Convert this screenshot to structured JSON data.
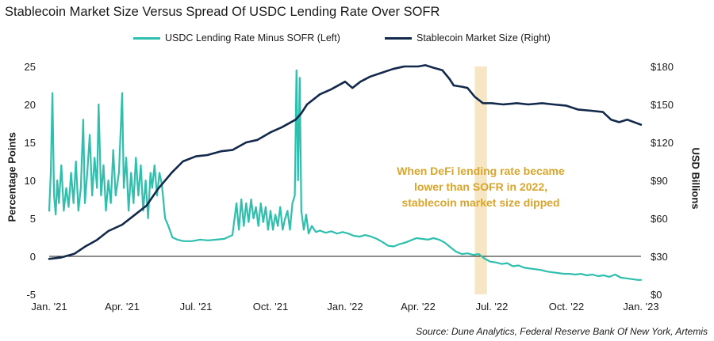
{
  "title": "Stablecoin Market Size Versus Spread Of USDC Lending Rate Over SOFR",
  "source": "Source: Dune Analytics, Federal Reserve Bank Of New York, Artemis",
  "colors": {
    "spread": "#2fbfae",
    "market": "#13294b",
    "highlight": "#f6e6c3",
    "annotation": "#d9a52b",
    "axis": "#1a1a1a",
    "text": "#1a1a1a"
  },
  "annotation": {
    "lines": [
      "When DeFi lending rate became",
      "lower than SOFR in 2022,",
      "stablecoin market size dipped"
    ]
  },
  "chart_data": {
    "type": "line",
    "title": "Stablecoin Market Size Versus Spread Of USDC Lending Rate Over SOFR",
    "x_type": "date",
    "x_range": [
      "2021-01-01",
      "2023-01-01"
    ],
    "x_ticks": [
      {
        "date": "2021-01-01",
        "label": "Jan. '21"
      },
      {
        "date": "2021-04-01",
        "label": "Apr. '21"
      },
      {
        "date": "2021-07-01",
        "label": "Jul. '21"
      },
      {
        "date": "2021-10-01",
        "label": "Oct. '21"
      },
      {
        "date": "2022-01-01",
        "label": "Jan. '22"
      },
      {
        "date": "2022-04-01",
        "label": "Apr. '22"
      },
      {
        "date": "2022-07-01",
        "label": "Jul. '22"
      },
      {
        "date": "2022-10-01",
        "label": "Oct. '22"
      },
      {
        "date": "2023-01-01",
        "label": "Jan. '23"
      }
    ],
    "y_left": {
      "label": "Percentage Points",
      "range": [
        -5,
        25
      ],
      "ticks": [
        -5,
        0,
        5,
        10,
        15,
        20,
        25
      ],
      "tick_labels": [
        "-5",
        "0",
        "5",
        "10",
        "15",
        "20",
        "25"
      ]
    },
    "y_right": {
      "label": "USD Billions",
      "range": [
        0,
        180
      ],
      "ticks": [
        0,
        30,
        60,
        90,
        120,
        150,
        180
      ],
      "tick_labels": [
        "$0",
        "$30",
        "$60",
        "$90",
        "$120",
        "$150",
        "$180"
      ]
    },
    "highlight_period": [
      "2022-06-10",
      "2022-06-25"
    ],
    "grid": false,
    "legend": "top",
    "series": [
      {
        "name": "USDC Lending Rate Minus SOFR (Left)",
        "axis": "left",
        "points": [
          [
            "2021-01-01",
            6
          ],
          [
            "2021-01-03",
            11
          ],
          [
            "2021-01-05",
            21.5
          ],
          [
            "2021-01-07",
            8
          ],
          [
            "2021-01-09",
            5.5
          ],
          [
            "2021-01-11",
            10
          ],
          [
            "2021-01-13",
            7
          ],
          [
            "2021-01-16",
            12
          ],
          [
            "2021-01-19",
            6
          ],
          [
            "2021-01-22",
            9
          ],
          [
            "2021-01-25",
            6.5
          ],
          [
            "2021-01-28",
            11
          ],
          [
            "2021-01-31",
            7
          ],
          [
            "2021-02-03",
            12.5
          ],
          [
            "2021-02-06",
            6
          ],
          [
            "2021-02-09",
            9
          ],
          [
            "2021-02-12",
            18
          ],
          [
            "2021-02-14",
            7
          ],
          [
            "2021-02-17",
            11
          ],
          [
            "2021-02-20",
            16
          ],
          [
            "2021-02-23",
            8
          ],
          [
            "2021-02-26",
            13
          ],
          [
            "2021-03-01",
            9
          ],
          [
            "2021-03-03",
            20
          ],
          [
            "2021-03-06",
            8
          ],
          [
            "2021-03-09",
            12
          ],
          [
            "2021-03-12",
            6
          ],
          [
            "2021-03-15",
            10
          ],
          [
            "2021-03-18",
            7
          ],
          [
            "2021-03-21",
            14
          ],
          [
            "2021-03-24",
            8
          ],
          [
            "2021-03-28",
            11
          ],
          [
            "2021-04-01",
            21.5
          ],
          [
            "2021-04-03",
            9
          ],
          [
            "2021-04-06",
            13
          ],
          [
            "2021-04-09",
            6
          ],
          [
            "2021-04-12",
            11
          ],
          [
            "2021-04-15",
            7
          ],
          [
            "2021-04-18",
            13
          ],
          [
            "2021-04-21",
            8
          ],
          [
            "2021-04-24",
            12
          ],
          [
            "2021-04-27",
            6
          ],
          [
            "2021-04-30",
            10
          ],
          [
            "2021-05-03",
            5
          ],
          [
            "2021-05-06",
            11
          ],
          [
            "2021-05-08",
            9
          ],
          [
            "2021-05-11",
            12
          ],
          [
            "2021-05-14",
            8
          ],
          [
            "2021-05-17",
            11
          ],
          [
            "2021-05-20",
            9.5
          ],
          [
            "2021-05-24",
            5
          ],
          [
            "2021-05-28",
            4
          ],
          [
            "2021-06-02",
            2.5
          ],
          [
            "2021-06-08",
            2.2
          ],
          [
            "2021-06-16",
            2.0
          ],
          [
            "2021-06-26",
            2.0
          ],
          [
            "2021-07-06",
            2.2
          ],
          [
            "2021-07-16",
            2.1
          ],
          [
            "2021-07-26",
            2.2
          ],
          [
            "2021-08-05",
            2.3
          ],
          [
            "2021-08-15",
            2.8
          ],
          [
            "2021-08-20",
            7
          ],
          [
            "2021-08-23",
            3.5
          ],
          [
            "2021-08-26",
            7.5
          ],
          [
            "2021-08-29",
            4
          ],
          [
            "2021-09-01",
            7
          ],
          [
            "2021-09-04",
            4.5
          ],
          [
            "2021-09-07",
            7.5
          ],
          [
            "2021-09-10",
            5
          ],
          [
            "2021-09-13",
            6.5
          ],
          [
            "2021-09-16",
            4
          ],
          [
            "2021-09-19",
            7
          ],
          [
            "2021-09-22",
            4.5
          ],
          [
            "2021-09-25",
            6.5
          ],
          [
            "2021-09-28",
            3.5
          ],
          [
            "2021-10-01",
            6
          ],
          [
            "2021-10-04",
            3.5
          ],
          [
            "2021-10-07",
            5.5
          ],
          [
            "2021-10-10",
            4
          ],
          [
            "2021-10-13",
            6.5
          ],
          [
            "2021-10-16",
            3.5
          ],
          [
            "2021-10-19",
            5
          ],
          [
            "2021-10-22",
            6
          ],
          [
            "2021-10-25",
            3.5
          ],
          [
            "2021-10-28",
            7
          ],
          [
            "2021-10-31",
            8
          ],
          [
            "2021-11-02",
            24.5
          ],
          [
            "2021-11-04",
            10
          ],
          [
            "2021-11-06",
            23.5
          ],
          [
            "2021-11-08",
            6
          ],
          [
            "2021-11-11",
            3.5
          ],
          [
            "2021-11-14",
            5.5
          ],
          [
            "2021-11-17",
            3
          ],
          [
            "2021-11-21",
            4
          ],
          [
            "2021-11-26",
            3.2
          ],
          [
            "2021-12-01",
            3.4
          ],
          [
            "2021-12-08",
            3.1
          ],
          [
            "2021-12-15",
            3.3
          ],
          [
            "2021-12-22",
            3.0
          ],
          [
            "2021-12-29",
            3.2
          ],
          [
            "2022-01-05",
            3.0
          ],
          [
            "2022-01-12",
            2.7
          ],
          [
            "2022-01-19",
            2.6
          ],
          [
            "2022-01-26",
            2.8
          ],
          [
            "2022-02-02",
            2.6
          ],
          [
            "2022-02-09",
            2.3
          ],
          [
            "2022-02-16",
            1.9
          ],
          [
            "2022-02-23",
            1.4
          ],
          [
            "2022-03-02",
            1.3
          ],
          [
            "2022-03-09",
            1.6
          ],
          [
            "2022-03-16",
            1.8
          ],
          [
            "2022-03-23",
            2.1
          ],
          [
            "2022-03-30",
            2.4
          ],
          [
            "2022-04-06",
            2.3
          ],
          [
            "2022-04-13",
            2.2
          ],
          [
            "2022-04-20",
            2.4
          ],
          [
            "2022-04-27",
            2.2
          ],
          [
            "2022-05-04",
            1.8
          ],
          [
            "2022-05-11",
            1.2
          ],
          [
            "2022-05-18",
            0.6
          ],
          [
            "2022-05-25",
            0.3
          ],
          [
            "2022-06-01",
            0.4
          ],
          [
            "2022-06-08",
            0.2
          ],
          [
            "2022-06-15",
            0.3
          ],
          [
            "2022-06-22",
            -0.3
          ],
          [
            "2022-06-29",
            -0.7
          ],
          [
            "2022-07-06",
            -0.8
          ],
          [
            "2022-07-13",
            -1.0
          ],
          [
            "2022-07-20",
            -0.9
          ],
          [
            "2022-07-27",
            -1.3
          ],
          [
            "2022-08-03",
            -1.2
          ],
          [
            "2022-08-10",
            -1.5
          ],
          [
            "2022-08-17",
            -1.6
          ],
          [
            "2022-08-24",
            -1.7
          ],
          [
            "2022-08-31",
            -1.8
          ],
          [
            "2022-09-07",
            -2.0
          ],
          [
            "2022-09-14",
            -2.1
          ],
          [
            "2022-09-21",
            -2.2
          ],
          [
            "2022-09-28",
            -2.3
          ],
          [
            "2022-10-05",
            -2.3
          ],
          [
            "2022-10-12",
            -2.4
          ],
          [
            "2022-10-19",
            -2.3
          ],
          [
            "2022-10-26",
            -2.5
          ],
          [
            "2022-11-02",
            -2.4
          ],
          [
            "2022-11-09",
            -2.6
          ],
          [
            "2022-11-16",
            -2.5
          ],
          [
            "2022-11-23",
            -2.7
          ],
          [
            "2022-11-30",
            -2.4
          ],
          [
            "2022-12-07",
            -2.8
          ],
          [
            "2022-12-14",
            -2.9
          ],
          [
            "2022-12-21",
            -3.0
          ],
          [
            "2022-12-28",
            -3.1
          ],
          [
            "2023-01-01",
            -3.1
          ]
        ]
      },
      {
        "name": "Stablecoin Market Size (Right)",
        "axis": "right",
        "points": [
          [
            "2021-01-01",
            28
          ],
          [
            "2021-01-15",
            29
          ],
          [
            "2021-02-01",
            32
          ],
          [
            "2021-02-15",
            38
          ],
          [
            "2021-03-01",
            43
          ],
          [
            "2021-03-15",
            50
          ],
          [
            "2021-04-01",
            55
          ],
          [
            "2021-04-15",
            62
          ],
          [
            "2021-05-01",
            70
          ],
          [
            "2021-05-15",
            83
          ],
          [
            "2021-06-01",
            96
          ],
          [
            "2021-06-15",
            105
          ],
          [
            "2021-07-01",
            109
          ],
          [
            "2021-07-15",
            110
          ],
          [
            "2021-08-01",
            113
          ],
          [
            "2021-08-15",
            114
          ],
          [
            "2021-09-01",
            120
          ],
          [
            "2021-09-15",
            122
          ],
          [
            "2021-10-01",
            128
          ],
          [
            "2021-10-15",
            132
          ],
          [
            "2021-11-01",
            138
          ],
          [
            "2021-11-08",
            143
          ],
          [
            "2021-11-15",
            150
          ],
          [
            "2021-12-01",
            158
          ],
          [
            "2021-12-15",
            162
          ],
          [
            "2022-01-01",
            168
          ],
          [
            "2022-01-10",
            163
          ],
          [
            "2022-01-20",
            168
          ],
          [
            "2022-02-01",
            172
          ],
          [
            "2022-02-15",
            175
          ],
          [
            "2022-03-01",
            178
          ],
          [
            "2022-03-15",
            180
          ],
          [
            "2022-04-01",
            180
          ],
          [
            "2022-04-10",
            181
          ],
          [
            "2022-04-20",
            179
          ],
          [
            "2022-05-01",
            177
          ],
          [
            "2022-05-10",
            170
          ],
          [
            "2022-05-15",
            165
          ],
          [
            "2022-05-25",
            164
          ],
          [
            "2022-06-01",
            163
          ],
          [
            "2022-06-10",
            156
          ],
          [
            "2022-06-20",
            151
          ],
          [
            "2022-07-01",
            151
          ],
          [
            "2022-07-15",
            150
          ],
          [
            "2022-08-01",
            151
          ],
          [
            "2022-08-15",
            150
          ],
          [
            "2022-09-01",
            151
          ],
          [
            "2022-09-15",
            150
          ],
          [
            "2022-10-01",
            149
          ],
          [
            "2022-10-15",
            146
          ],
          [
            "2022-11-01",
            145
          ],
          [
            "2022-11-15",
            144
          ],
          [
            "2022-11-25",
            138
          ],
          [
            "2022-12-05",
            136
          ],
          [
            "2022-12-15",
            138
          ],
          [
            "2023-01-01",
            134
          ]
        ]
      }
    ]
  }
}
